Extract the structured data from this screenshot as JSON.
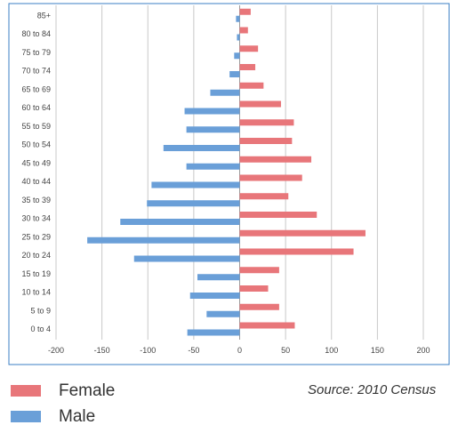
{
  "chart_data": {
    "type": "bar",
    "orientation": "horizontal",
    "categories": [
      "0 to 4",
      "5 to 9",
      "10 to 14",
      "15 to 19",
      "20 to 24",
      "25 to 29",
      "30 to 34",
      "35 to 39",
      "40 to 44",
      "45 to 49",
      "50 to 54",
      "55 to 59",
      "60 to 64",
      "65 to 69",
      "70 to 74",
      "75 to 79",
      "80 to 84",
      "85+"
    ],
    "series": [
      {
        "name": "Female",
        "color": "#e8767a",
        "values": [
          60,
          43,
          31,
          43,
          124,
          137,
          84,
          53,
          68,
          78,
          57,
          59,
          45,
          26,
          17,
          20,
          9,
          12
        ]
      },
      {
        "name": "Male",
        "color": "#6a9fd8",
        "values": [
          -57,
          -36,
          -54,
          -46,
          -115,
          -166,
          -130,
          -101,
          -96,
          -58,
          -83,
          -58,
          -60,
          -32,
          -11,
          -6,
          -3,
          -4
        ]
      }
    ],
    "xlim": [
      -200,
      200
    ],
    "xticks": [
      "-200",
      "-150",
      "-100",
      "-50",
      "0",
      "50",
      "100",
      "150",
      "200"
    ],
    "grid": true,
    "legend_placement": "bottom-left",
    "axis_color": "#3b7fc4",
    "gridline_color": "#c8c8c8"
  },
  "legend": {
    "female_label": "Female",
    "male_label": "Male"
  },
  "source_note": "Source: 2010 Census"
}
